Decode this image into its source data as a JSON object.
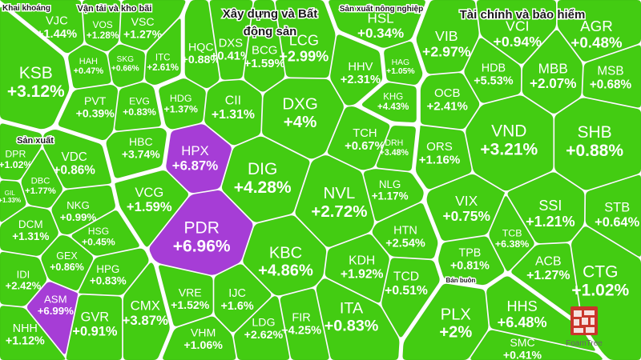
{
  "chart_data": {
    "type": "treemap",
    "colors": {
      "up": "#43cc12",
      "ceiling": "#a63dd6",
      "gap": "#ffffff",
      "title": "#1a1a1a"
    },
    "groups": [
      {
        "name": "Khai khoáng",
        "items": [
          {
            "ticker": "KSB",
            "value": "+3.12%"
          }
        ]
      },
      {
        "name": "Vận tải và kho bãi",
        "items": [
          {
            "ticker": "VJC",
            "value": "+1.44%"
          },
          {
            "ticker": "VOS",
            "value": "+1.28%"
          },
          {
            "ticker": "VSC",
            "value": "+1.27%"
          },
          {
            "ticker": "HAH",
            "value": "+0.47%"
          },
          {
            "ticker": "SKG",
            "value": "+0.66%"
          },
          {
            "ticker": "PVT",
            "value": "+0.39%"
          },
          {
            "ticker": "ITC",
            "value": "+2.61%"
          },
          {
            "ticker": "EVG",
            "value": "+0.83%"
          },
          {
            "ticker": "HBC",
            "value": "+3.74%"
          }
        ]
      },
      {
        "name": "Sản xuất",
        "items": [
          {
            "ticker": "DPR",
            "value": "+1.02%"
          },
          {
            "ticker": "VDC",
            "value": "+0.86%"
          },
          {
            "ticker": "DBC",
            "value": "+1.77%"
          },
          {
            "ticker": "GIL",
            "value": "+1.33%"
          },
          {
            "ticker": "NKG",
            "value": "+0.99%"
          },
          {
            "ticker": "DCM",
            "value": "+1.31%"
          },
          {
            "ticker": "HSG",
            "value": "+0.45%"
          },
          {
            "ticker": "GEX",
            "value": "+0.86%"
          },
          {
            "ticker": "IDI",
            "value": "+2.42%"
          },
          {
            "ticker": "HPG",
            "value": "+0.83%"
          },
          {
            "ticker": "ASM",
            "value": "+6.99%",
            "ceiling": true
          },
          {
            "ticker": "GVR",
            "value": "+0.91%"
          },
          {
            "ticker": "CMX",
            "value": "+3.87%"
          },
          {
            "ticker": "NHH",
            "value": "+1.12%"
          }
        ]
      },
      {
        "name": "Xây dựng và Bất động sản",
        "items": [
          {
            "ticker": "HQC",
            "value": "+0.88%"
          },
          {
            "ticker": "DXS",
            "value": "+0.41%"
          },
          {
            "ticker": "BCG",
            "value": "+1.59%"
          },
          {
            "ticker": "LCG",
            "value": "+2.99%"
          },
          {
            "ticker": "HDG",
            "value": "+1.37%"
          },
          {
            "ticker": "CII",
            "value": "+1.31%"
          },
          {
            "ticker": "DXG",
            "value": "+4%"
          },
          {
            "ticker": "HHV",
            "value": "+2.31%"
          },
          {
            "ticker": "HPX",
            "value": "+6.87%",
            "ceiling": true
          },
          {
            "ticker": "TCH",
            "value": "+0.67%"
          },
          {
            "ticker": "DIG",
            "value": "+4.28%"
          },
          {
            "ticker": "VCG",
            "value": "+1.59%"
          },
          {
            "ticker": "NVL",
            "value": "+2.72%"
          },
          {
            "ticker": "NLG",
            "value": "+1.17%"
          },
          {
            "ticker": "PDR",
            "value": "+6.96%",
            "ceiling": true
          },
          {
            "ticker": "KBC",
            "value": "+4.86%"
          },
          {
            "ticker": "HTN",
            "value": "+2.54%"
          },
          {
            "ticker": "KDH",
            "value": "+1.92%"
          },
          {
            "ticker": "VRE",
            "value": "+1.52%"
          },
          {
            "ticker": "IJC",
            "value": "+1.6%"
          },
          {
            "ticker": "TCD",
            "value": "+0.51%"
          },
          {
            "ticker": "ITA",
            "value": "+0.83%"
          },
          {
            "ticker": "VHM",
            "value": "+1.06%"
          },
          {
            "ticker": "LDG",
            "value": "+2.62%"
          },
          {
            "ticker": "FIR",
            "value": "+4.25%"
          },
          {
            "ticker": "DRH",
            "value": "+3.48%"
          }
        ]
      },
      {
        "name": "Sản xuất nông nghiệp",
        "items": [
          {
            "ticker": "HSL",
            "value": "+0.34%"
          },
          {
            "ticker": "HAG",
            "value": "+1.05%"
          },
          {
            "ticker": "KHG",
            "value": "+4.43%"
          }
        ]
      },
      {
        "name": "Tài chính và bảo hiểm",
        "items": [
          {
            "ticker": "VIB",
            "value": "+2.97%"
          },
          {
            "ticker": "VCI",
            "value": "+0.94%"
          },
          {
            "ticker": "AGR",
            "value": "+0.48%"
          },
          {
            "ticker": "HDB",
            "value": "+5.53%"
          },
          {
            "ticker": "MBB",
            "value": "+2.07%"
          },
          {
            "ticker": "MSB",
            "value": "+0.68%"
          },
          {
            "ticker": "OCB",
            "value": "+2.41%"
          },
          {
            "ticker": "VND",
            "value": "+3.21%"
          },
          {
            "ticker": "SHB",
            "value": "+0.88%"
          },
          {
            "ticker": "ORS",
            "value": "+1.16%"
          },
          {
            "ticker": "VIX",
            "value": "+0.75%"
          },
          {
            "ticker": "SSI",
            "value": "+1.21%"
          },
          {
            "ticker": "STB",
            "value": "+0.64%"
          },
          {
            "ticker": "TCB",
            "value": "+6.38%"
          },
          {
            "ticker": "TPB",
            "value": "+0.81%"
          },
          {
            "ticker": "ACB",
            "value": "+1.27%"
          },
          {
            "ticker": "CTG",
            "value": "+1.02%"
          }
        ]
      },
      {
        "name": "Bán buôn",
        "items": [
          {
            "ticker": "PLX",
            "value": "+2%"
          },
          {
            "ticker": "HHS",
            "value": "+6.48%"
          },
          {
            "ticker": "SMC",
            "value": "+0.41%"
          }
        ]
      }
    ]
  },
  "logo": {
    "text": "FoamTree"
  }
}
